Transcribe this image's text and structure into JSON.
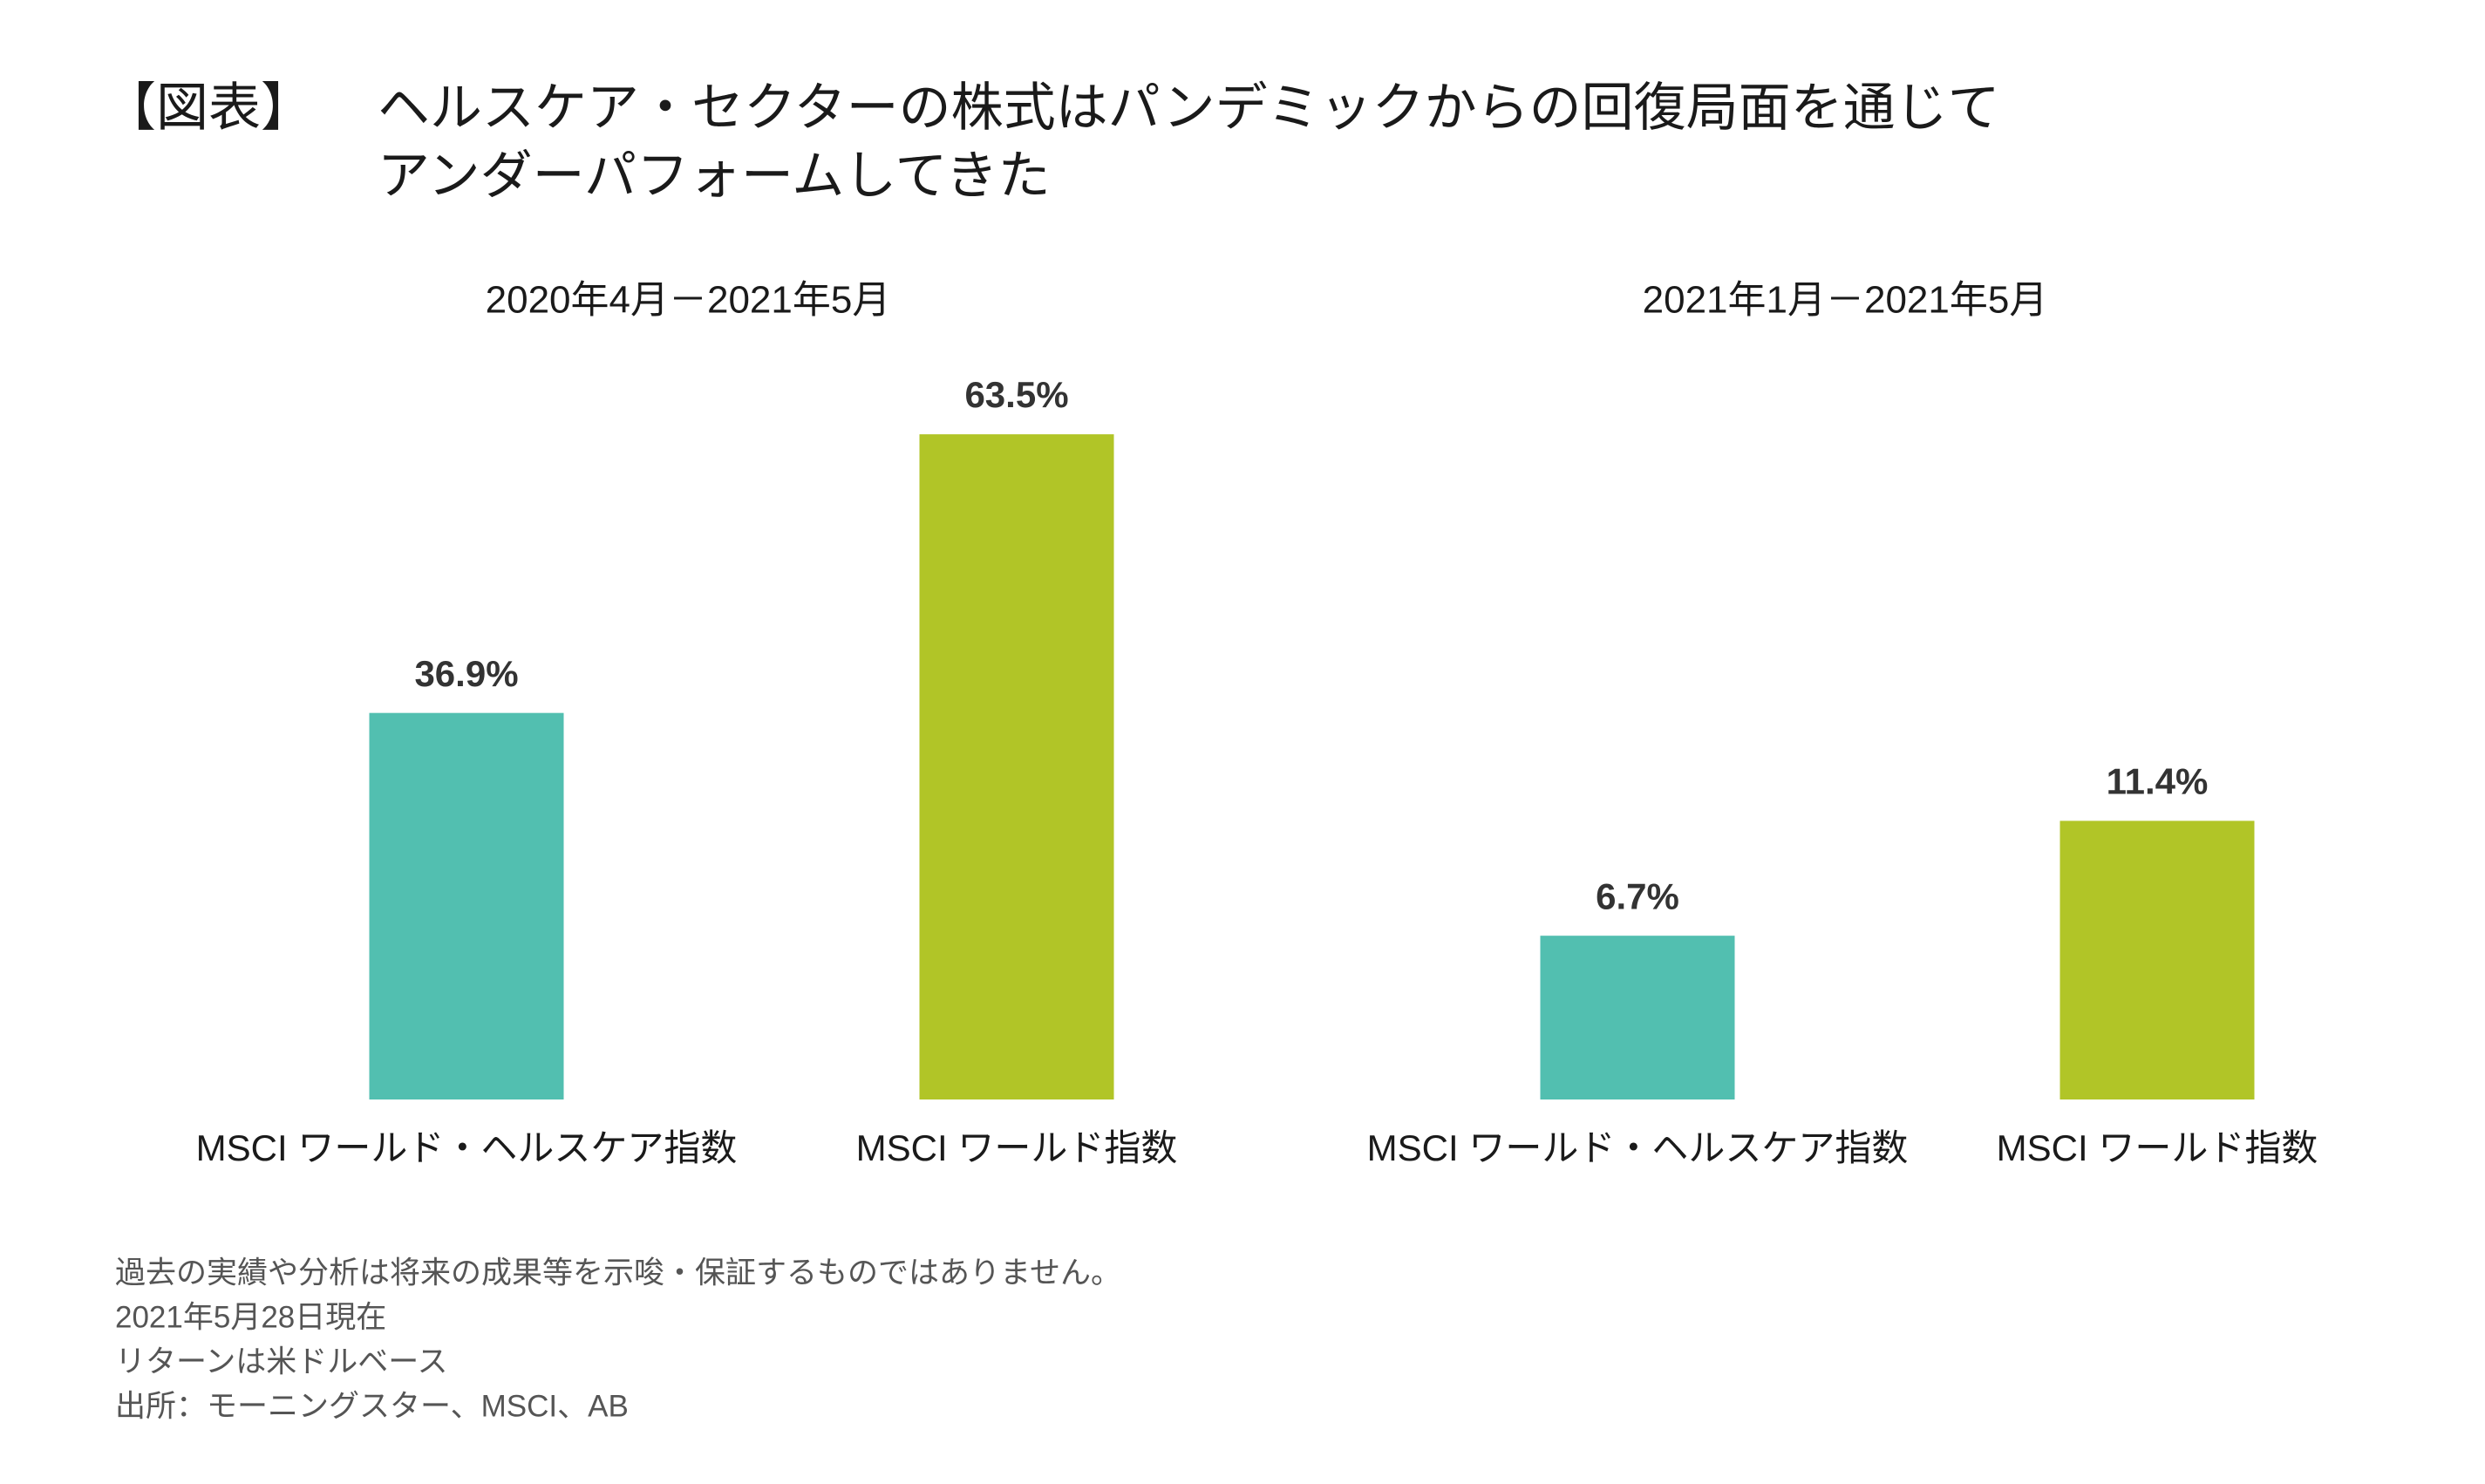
{
  "header": {
    "label": "【図表】",
    "title": [
      "ヘルスケア・セクターの株式はパンデミックからの回復局面を通じて",
      "アンダーパフォームしてきた"
    ]
  },
  "chart_data": [
    {
      "type": "bar",
      "title": "2020年4月－2021年5月",
      "categories": [
        "MSCI ワールド・ヘルスケア指数",
        "MSCI ワールド指数"
      ],
      "values": [
        36.9,
        63.5
      ],
      "value_labels": [
        "36.9%",
        "63.5%"
      ],
      "colors": [
        "#52bfb0",
        "#b1c527"
      ],
      "ylim": [
        0,
        70
      ]
    },
    {
      "type": "bar",
      "title": "2021年1月－2021年5月",
      "categories": [
        "MSCI ワールド・ヘルスケア指数",
        "MSCI ワールド指数"
      ],
      "values": [
        6.7,
        11.4
      ],
      "value_labels": [
        "6.7%",
        "11.4%"
      ],
      "colors": [
        "#52bfb0",
        "#b1c527"
      ],
      "ylim": [
        0,
        30
      ]
    }
  ],
  "notes": [
    "過去の実績や分析は将来の成果等を示唆・保証するものではありません。",
    "2021年5月28日現在",
    "リターンは米ドルベース",
    "出所：モーニングスター、MSCI、AB"
  ]
}
